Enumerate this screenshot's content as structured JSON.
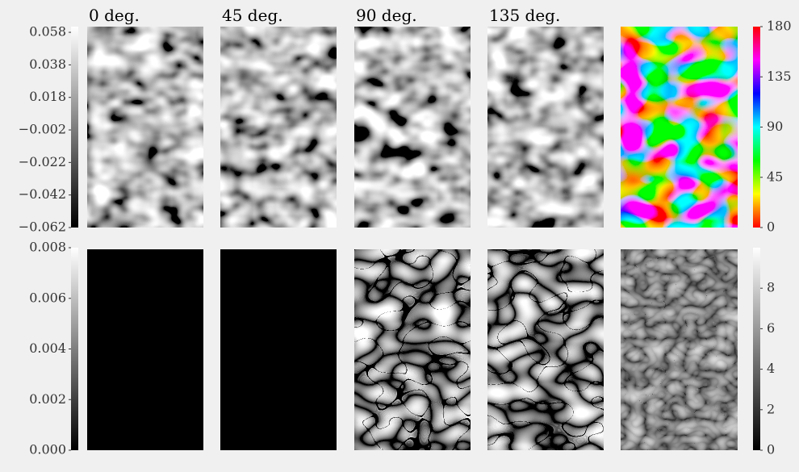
{
  "chart_data": {
    "type": "image-grid",
    "panel_titles": [
      "0 deg.",
      "45 deg.",
      "90 deg.",
      "135 deg."
    ],
    "colorbars": [
      {
        "cmap": "gray",
        "lim": [
          -0.062,
          0.0615
        ],
        "ticks": [
          {
            "value": -0.062,
            "label": "−0.062"
          },
          {
            "value": -0.042,
            "label": "−0.042"
          },
          {
            "value": -0.022,
            "label": "−0.022"
          },
          {
            "value": -0.002,
            "label": "−0.002"
          },
          0.018,
          0.038,
          0.058
        ]
      },
      {
        "cmap": "hsv",
        "lim": [
          0,
          180
        ],
        "ticks": [
          0,
          45,
          90,
          135,
          180
        ]
      },
      {
        "cmap": "gray",
        "lim": [
          0,
          0.008
        ],
        "ticks": [
          {
            "value": 0,
            "label": "0.000"
          },
          0.002,
          0.004,
          0.006,
          0.008
        ]
      },
      {
        "cmap": "gray",
        "lim": [
          0,
          10
        ],
        "ticks": [
          0,
          2,
          4,
          6,
          8
        ]
      }
    ]
  }
}
